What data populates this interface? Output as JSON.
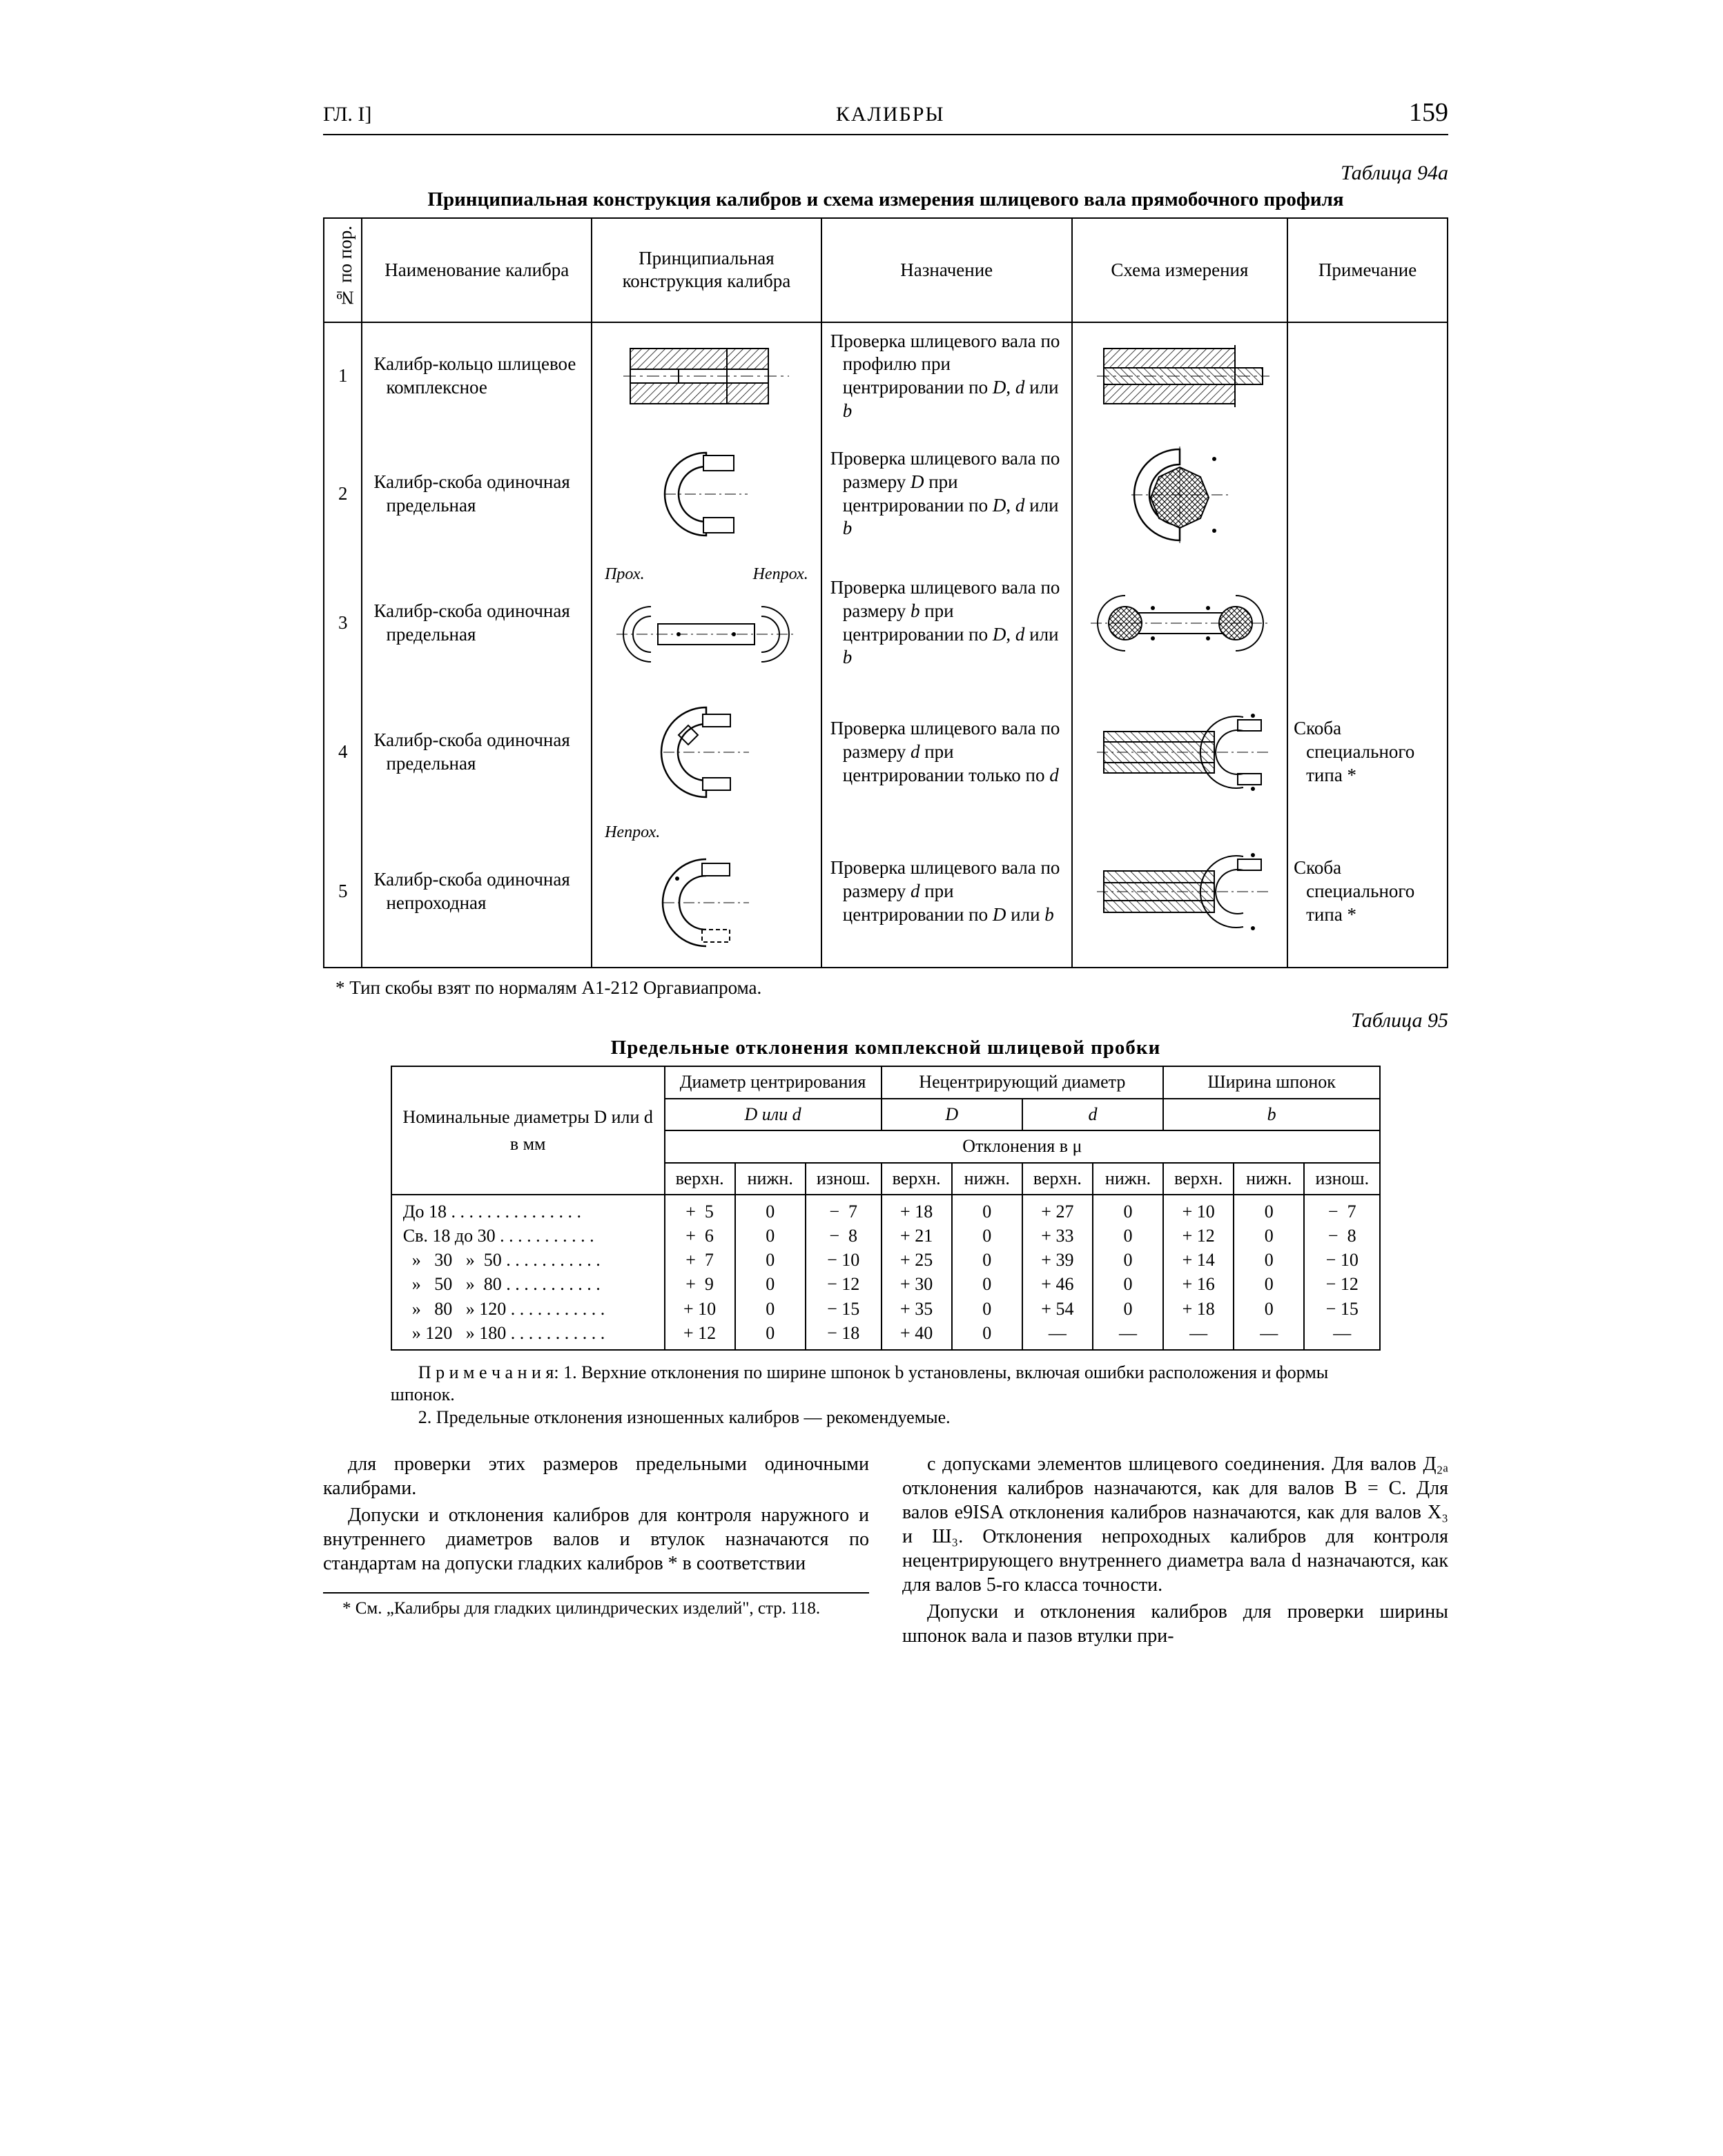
{
  "header": {
    "left": "ГЛ. I]",
    "center": "КАЛИБРЫ",
    "page": "159"
  },
  "t94": {
    "label": "Таблица 94а",
    "title": "Принципиальная конструкция калибров и схема измерения шлицевого вала прямобочного профиля",
    "head": {
      "no": "№ по пор.",
      "name": "Наименование калибра",
      "constr": "Принципиальная конструкция калибра",
      "purpose": "Назначение",
      "scheme": "Схема измерения",
      "note": "Примечание"
    },
    "rows": [
      {
        "n": "1",
        "name": "Калибр-кольцо шлицевое комплексное",
        "purpose": "Проверка шлицевого вала по профилю при центрировании по D, d или b",
        "note": "",
        "lbl1": "",
        "lbl2": ""
      },
      {
        "n": "2",
        "name": "Калибр-скоба одиночная предельная",
        "purpose": "Проверка шлицевого вала по размеру D при центрировании по D, d или b",
        "note": "",
        "lbl1": "",
        "lbl2": ""
      },
      {
        "n": "3",
        "name": "Калибр-скоба одиночная предельная",
        "purpose": "Проверка шлицевого вала по размеру b при центрировании по D, d или b",
        "note": "",
        "lbl1": "Прох.",
        "lbl2": "Непрох."
      },
      {
        "n": "4",
        "name": "Калибр-скоба одиночная предельная",
        "purpose": "Проверка шлицевого вала по размеру d при центрировании только по d",
        "note": "Скоба специального типа *",
        "lbl1": "",
        "lbl2": ""
      },
      {
        "n": "5",
        "name": "Калибр-скоба одиночная непроходная",
        "purpose": "Проверка шлицевого вала по размеру d при центрировании по D или b",
        "note": "Скоба специального типа *",
        "lbl1": "Непрох.",
        "lbl2": ""
      }
    ],
    "footnote": "* Тип скобы взят по нормалям А1-212 Оргавиапрома."
  },
  "t95": {
    "label": "Таблица 95",
    "title": "Предельные отклонения комплексной шлицевой пробки",
    "head": {
      "nominal": "Номинальные диаметры D или d в мм",
      "centr": "Диаметр центрирования",
      "noncentr": "Нецентрирующий диаметр",
      "keyw": "Ширина шпонок",
      "Dord": "D или d",
      "D": "D",
      "d": "d",
      "b": "b",
      "dev": "Отклонения в μ",
      "up": "верхн.",
      "low": "нижн.",
      "worn": "изнош."
    },
    "rows_label": "До 18 . . . . . . . . . . . . . . .\nСв. 18 до 30 . . . . . . . . . . .\n  »   30   »  50 . . . . . . . . . . .\n  »   50   »  80 . . . . . . . . . . .\n  »   80   » 120 . . . . . . . . . . .\n  » 120   » 180 . . . . . . . . . . .",
    "data": {
      "c_up": "+  5\n+  6\n+  7\n+  9\n+ 10\n+ 12",
      "c_low": "0\n0\n0\n0\n0\n0",
      "c_worn": "−  7\n−  8\n− 10\n− 12\n− 15\n− 18",
      "D_up": "+ 18\n+ 21\n+ 25\n+ 30\n+ 35\n+ 40",
      "D_low": "0\n0\n0\n0\n0\n0",
      "d_up": "+ 27\n+ 33\n+ 39\n+ 46\n+ 54\n—",
      "d_low": "0\n0\n0\n0\n0\n—",
      "b_up": "+ 10\n+ 12\n+ 14\n+ 16\n+ 18\n—",
      "b_low": "0\n0\n0\n0\n0\n—",
      "b_worn": "−  7\n−  8\n− 10\n− 12\n− 15\n—"
    },
    "notes1": "П р и м е ч а н и я: 1. Верхние отклонения по ширине шпонок b установлены, включая ошибки расположения и формы шпонок.",
    "notes2": "2. Предельные отклонения изношенных калибров — рекомендуемые."
  },
  "body": {
    "l1": "для проверки этих размеров предельными одиночными калибрами.",
    "l2": "Допуски и отклонения калибров для контроля наружного и внутреннего диаметров валов и втулок назначаются по стандартам на допуски гладких калибров * в соответствии",
    "lfoot": "* См. „Калибры для гладких цилиндрических изделий\", стр. 118.",
    "r1": "с допусками элементов шлицевого соединения. Для валов Д₂ₐ отклонения калибров назначаются, как для валов B = C. Для валов e9ISA отклонения калибров назначаются, как для валов X₃ и Ш₃. Отклонения непроходных калибров для контроля нецентрирующего внутреннего диаметра вала d назначаются, как для валов 5-го класса точности.",
    "r2": "Допуски и отклонения калибров для проверки ширины шпонок вала и пазов втулки при-"
  },
  "svg": {
    "hatch": "#808080",
    "stroke": "#000",
    "bg": "#fff"
  }
}
